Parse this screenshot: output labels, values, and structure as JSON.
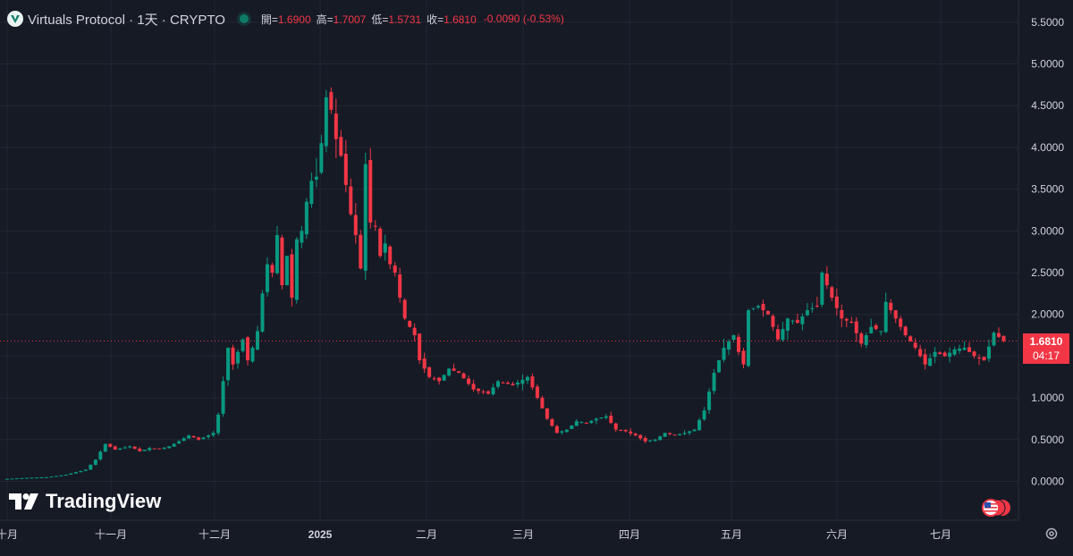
{
  "header": {
    "symbol_title": "Virtuals Protocol · 1天 · CRYPTO",
    "open_label": "開=",
    "open_value": "1.6900",
    "high_label": "高=",
    "high_value": "1.7007",
    "low_label": "低=",
    "low_value": "1.5731",
    "close_label": "收=",
    "close_value": "1.6810",
    "change": "-0.0090 (-0.53%)"
  },
  "branding": {
    "name": "TradingView"
  },
  "last_price": {
    "value": "1.6810",
    "countdown": "04:17"
  },
  "colors": {
    "up": "#089981",
    "down": "#f23645",
    "background": "#161a25",
    "grid": "#232733",
    "text": "#d1d4dc"
  },
  "icons": [
    "tradingview-logo-icon",
    "symbol-logo-icon",
    "market-status-icon",
    "us-flag-icon",
    "settings-gear-icon"
  ],
  "chart_data": {
    "type": "candlestick",
    "title": "Virtuals Protocol · 1天 · CRYPTO",
    "ylim": [
      -0.35,
      5.65
    ],
    "y_ticks": [
      "0.0000",
      "0.5000",
      "1.0000",
      "1.5000",
      "2.0000",
      "2.5000",
      "3.0000",
      "3.5000",
      "4.0000",
      "4.5000",
      "5.0000",
      "5.5000"
    ],
    "x_ticks": [
      "十月",
      "十一月",
      "十二月",
      "2025",
      "二月",
      "三月",
      "四月",
      "五月",
      "六月",
      "七月"
    ],
    "grid": true,
    "price_line": 1.681,
    "close_path": [
      [
        0,
        0.03
      ],
      [
        3,
        0.04
      ],
      [
        8,
        0.05
      ],
      [
        12,
        0.08
      ],
      [
        16,
        0.14
      ],
      [
        18,
        0.26
      ],
      [
        20,
        0.45
      ],
      [
        22,
        0.38
      ],
      [
        25,
        0.42
      ],
      [
        27,
        0.36
      ],
      [
        29,
        0.4
      ],
      [
        31,
        0.39
      ],
      [
        33,
        0.42
      ],
      [
        35,
        0.48
      ],
      [
        37,
        0.55
      ],
      [
        39,
        0.5
      ],
      [
        41,
        0.55
      ],
      [
        42,
        0.58
      ],
      [
        43,
        0.8
      ],
      [
        44,
        1.2
      ],
      [
        45,
        1.6
      ],
      [
        46,
        1.4
      ],
      [
        47,
        1.55
      ],
      [
        48,
        1.7
      ],
      [
        49,
        1.45
      ],
      [
        50,
        1.6
      ],
      [
        51,
        1.8
      ],
      [
        52,
        2.25
      ],
      [
        53,
        2.6
      ],
      [
        54,
        2.5
      ],
      [
        55,
        2.95
      ],
      [
        56,
        2.35
      ],
      [
        57,
        2.7
      ],
      [
        58,
        2.2
      ],
      [
        59,
        2.9
      ],
      [
        60,
        3.0
      ],
      [
        61,
        3.35
      ],
      [
        62,
        3.6
      ],
      [
        63,
        3.65
      ],
      [
        64,
        4.05
      ],
      [
        65,
        4.6
      ],
      [
        66,
        4.45
      ],
      [
        67,
        4.1
      ],
      [
        68,
        3.9
      ],
      [
        69,
        3.55
      ],
      [
        70,
        3.2
      ],
      [
        71,
        2.95
      ],
      [
        72,
        2.55
      ],
      [
        73,
        3.8
      ],
      [
        74,
        3.1
      ],
      [
        75,
        3.05
      ],
      [
        76,
        2.7
      ],
      [
        77,
        2.85
      ],
      [
        78,
        2.6
      ],
      [
        79,
        2.5
      ],
      [
        80,
        2.2
      ],
      [
        81,
        1.95
      ],
      [
        82,
        1.85
      ],
      [
        83,
        1.75
      ],
      [
        84,
        1.45
      ],
      [
        86,
        1.25
      ],
      [
        88,
        1.2
      ],
      [
        90,
        1.35
      ],
      [
        92,
        1.3
      ],
      [
        95,
        1.1
      ],
      [
        98,
        1.05
      ],
      [
        100,
        1.2
      ],
      [
        103,
        1.15
      ],
      [
        106,
        1.25
      ],
      [
        108,
        1.0
      ],
      [
        110,
        0.75
      ],
      [
        112,
        0.58
      ],
      [
        114,
        0.62
      ],
      [
        116,
        0.72
      ],
      [
        118,
        0.7
      ],
      [
        120,
        0.75
      ],
      [
        122,
        0.78
      ],
      [
        124,
        0.62
      ],
      [
        126,
        0.6
      ],
      [
        128,
        0.55
      ],
      [
        130,
        0.48
      ],
      [
        132,
        0.5
      ],
      [
        134,
        0.58
      ],
      [
        136,
        0.55
      ],
      [
        138,
        0.58
      ],
      [
        140,
        0.62
      ],
      [
        142,
        0.85
      ],
      [
        144,
        1.3
      ],
      [
        146,
        1.6
      ],
      [
        148,
        1.75
      ],
      [
        149,
        1.55
      ],
      [
        150,
        1.4
      ],
      [
        151,
        2.05
      ],
      [
        153,
        2.1
      ],
      [
        155,
        2.0
      ],
      [
        157,
        1.7
      ],
      [
        159,
        1.95
      ],
      [
        161,
        1.9
      ],
      [
        163,
        2.05
      ],
      [
        165,
        2.1
      ],
      [
        166,
        2.5
      ],
      [
        168,
        2.2
      ],
      [
        170,
        1.95
      ],
      [
        172,
        1.9
      ],
      [
        174,
        1.65
      ],
      [
        176,
        1.85
      ],
      [
        178,
        1.8
      ],
      [
        179,
        2.15
      ],
      [
        181,
        1.95
      ],
      [
        183,
        1.75
      ],
      [
        185,
        1.6
      ],
      [
        187,
        1.4
      ],
      [
        189,
        1.55
      ],
      [
        191,
        1.5
      ],
      [
        193,
        1.58
      ],
      [
        195,
        1.6
      ],
      [
        197,
        1.5
      ],
      [
        199,
        1.45
      ],
      [
        201,
        1.78
      ],
      [
        203,
        1.681
      ]
    ]
  }
}
